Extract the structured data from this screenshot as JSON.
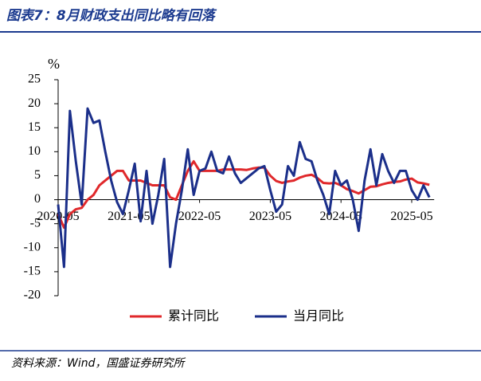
{
  "header": {
    "title": "图表7：8月财政支出同比略有回落"
  },
  "chart_data": {
    "type": "line",
    "y_label": "%",
    "categories": [
      "2020-05",
      null,
      null,
      null,
      null,
      null,
      null,
      null,
      null,
      null,
      null,
      null,
      "2021-05",
      null,
      null,
      null,
      null,
      null,
      null,
      null,
      null,
      null,
      null,
      null,
      "2022-05",
      null,
      null,
      null,
      null,
      null,
      null,
      null,
      null,
      null,
      null,
      null,
      "2023-05",
      null,
      null,
      null,
      null,
      null,
      null,
      null,
      null,
      null,
      null,
      null,
      "2024-05",
      null,
      null,
      null,
      null,
      null,
      null,
      null,
      null,
      null,
      null,
      null,
      "2025-05",
      null,
      null,
      null
    ],
    "series": [
      {
        "name": "累计同比",
        "color": "#e0282b",
        "values": [
          -3,
          -5.8,
          -3,
          -2,
          -1.7,
          0,
          1,
          3,
          4,
          5,
          6,
          6,
          4,
          4,
          4,
          3.5,
          3,
          3,
          3,
          0.5,
          0,
          3,
          6,
          8,
          6,
          6,
          6,
          6,
          6.3,
          6.3,
          6.3,
          6.3,
          6.2,
          6.5,
          6.7,
          6.7,
          5,
          3.9,
          3.5,
          3.8,
          4,
          4.6,
          5,
          5.2,
          4.5,
          3.5,
          3.4,
          3.5,
          3,
          2.2,
          1.8,
          1.3,
          2,
          2.7,
          2.8,
          3.2,
          3.5,
          3.7,
          3.8,
          4.2,
          4.4,
          3.6,
          3.4,
          3.1
        ]
      },
      {
        "name": "当月同比",
        "color": "#1b2f8a",
        "values": [
          -1,
          -14,
          18.5,
          8,
          -1,
          19,
          16,
          16.5,
          10,
          4,
          -0.5,
          -3,
          2,
          7.5,
          -4.5,
          6,
          -5,
          1,
          8.5,
          -14,
          -5,
          2,
          10.5,
          1,
          6,
          6.5,
          10,
          6,
          5.5,
          9,
          5.5,
          3.5,
          4.5,
          5.5,
          6.5,
          7,
          2,
          -2.5,
          -1,
          7,
          5,
          12,
          8.5,
          8,
          4,
          1,
          -3,
          6,
          3,
          4,
          0,
          -6.5,
          4,
          10.5,
          3,
          9.5,
          6,
          3.5,
          6,
          6,
          2,
          0,
          3,
          0.5
        ]
      }
    ],
    "ylim": [
      -20,
      25
    ],
    "yticks": [
      -20,
      -15,
      -10,
      -5,
      0,
      5,
      10,
      15,
      20,
      25
    ]
  },
  "footer": {
    "source": "资料来源：Wind，国盛证券研究所"
  }
}
